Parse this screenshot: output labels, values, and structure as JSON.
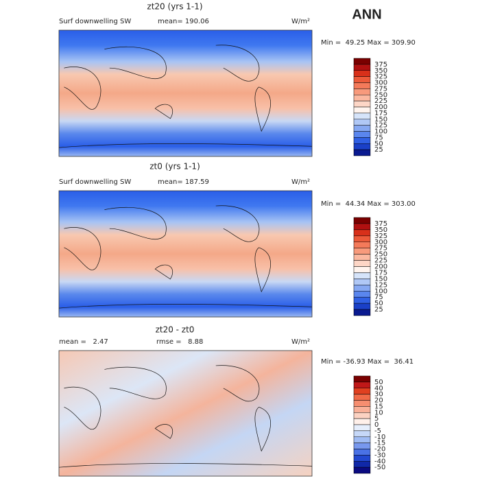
{
  "title": "ANN",
  "panels": [
    {
      "title": "zt20 (yrs 1-1)",
      "left_label": "Surf downwelling SW",
      "mid_label": "mean= 190.06",
      "units": "W/m²",
      "stats": "Min =  49.25 Max = 309.90",
      "colorbar": [
        "375",
        "350",
        "325",
        "300",
        "275",
        "250",
        "225",
        "200",
        "175",
        "150",
        "125",
        "100",
        "75",
        "50",
        "25"
      ]
    },
    {
      "title": "zt0 (yrs 1-1)",
      "left_label": "Surf downwelling SW",
      "mid_label": "mean= 187.59",
      "units": "W/m²",
      "stats": "Min =  44.34 Max = 303.00",
      "colorbar": [
        "375",
        "350",
        "325",
        "300",
        "275",
        "250",
        "225",
        "200",
        "175",
        "150",
        "125",
        "100",
        "75",
        "50",
        "25"
      ]
    },
    {
      "title": "zt20 - zt0",
      "left_label": "mean =   2.47",
      "mid_label": "rmse =   8.88",
      "units": "W/m²",
      "stats": "Min = -36.93 Max =  36.41",
      "colorbar": [
        "50",
        "40",
        "30",
        "20",
        "15",
        "10",
        "5",
        "0",
        "-5",
        "-10",
        "-15",
        "-20",
        "-30",
        "-40",
        "-50"
      ]
    }
  ]
}
